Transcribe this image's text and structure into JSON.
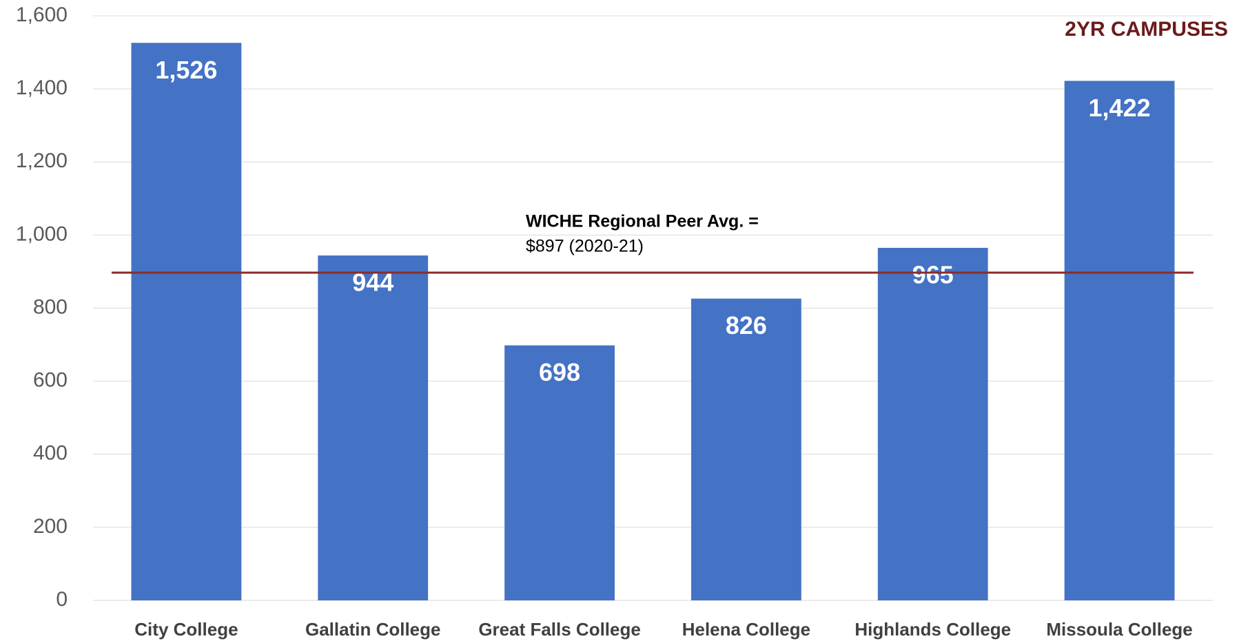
{
  "chart_data": {
    "type": "bar",
    "categories": [
      "City College",
      "Gallatin College",
      "Great Falls College",
      "Helena College",
      "Highlands College",
      "Missoula College"
    ],
    "values": [
      1526,
      944,
      698,
      826,
      965,
      1422
    ],
    "value_labels": [
      "1,526",
      "944",
      "698",
      "826",
      "965",
      "1,422"
    ],
    "color": "#4472c4",
    "ylim": [
      0,
      1600
    ],
    "yticks": [
      0,
      200,
      400,
      600,
      800,
      {
        "value": 1000,
        "label": "1,000"
      },
      {
        "value": 1200,
        "label": "1,200"
      },
      {
        "value": 1400,
        "label": "1,400"
      },
      {
        "value": 1600,
        "label": "1,600"
      }
    ],
    "grid": true,
    "corner_label": "2YR CAMPUSES",
    "reference_line": {
      "value": 897,
      "color": "#8b2a2a",
      "label": "WICHE Regional Peer Avg. =",
      "sublabel": "$897 (2020-21)"
    }
  }
}
